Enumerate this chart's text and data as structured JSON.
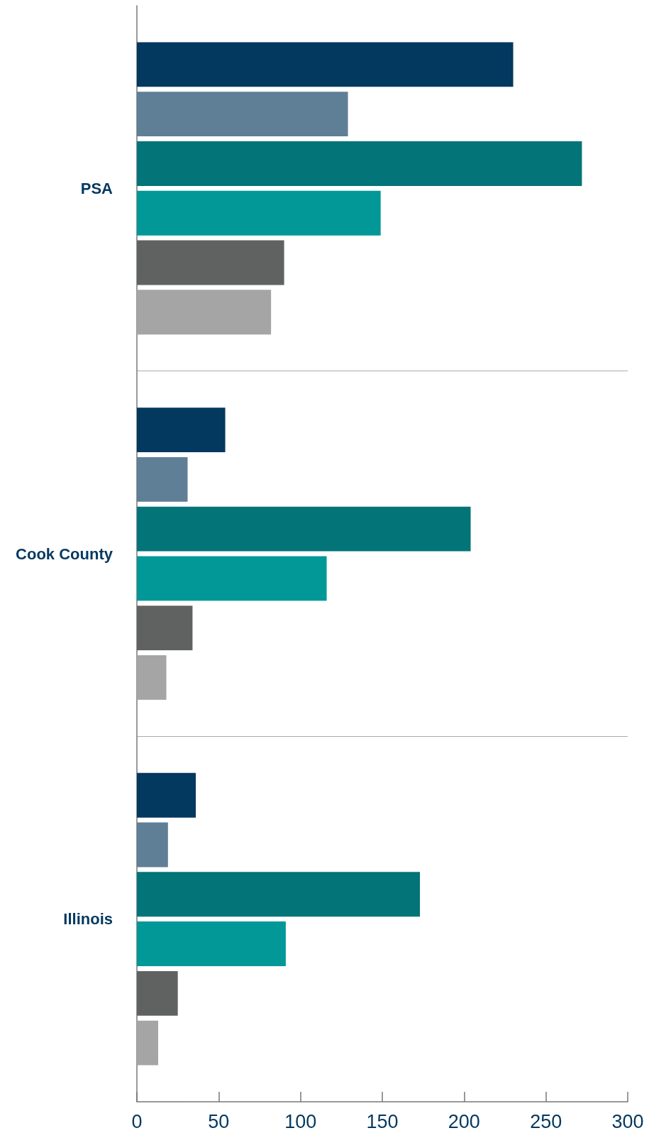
{
  "chart_data": {
    "type": "bar",
    "orientation": "horizontal",
    "categories": [
      "PSA",
      "Cook County",
      "Illinois"
    ],
    "series": [
      {
        "color": "#03385f",
        "values": [
          230,
          54,
          36
        ]
      },
      {
        "color": "#5f7f96",
        "values": [
          129,
          31,
          19
        ]
      },
      {
        "color": "#037478",
        "values": [
          272,
          204,
          173
        ]
      },
      {
        "color": "#039898",
        "values": [
          149,
          116,
          91
        ]
      },
      {
        "color": "#606261",
        "values": [
          90,
          34,
          25
        ]
      },
      {
        "color": "#a5a5a5",
        "values": [
          82,
          18,
          13
        ]
      }
    ],
    "xlim": [
      0,
      300
    ],
    "xticks": [
      0,
      50,
      100,
      150,
      200,
      250,
      300
    ],
    "grid": "y"
  }
}
